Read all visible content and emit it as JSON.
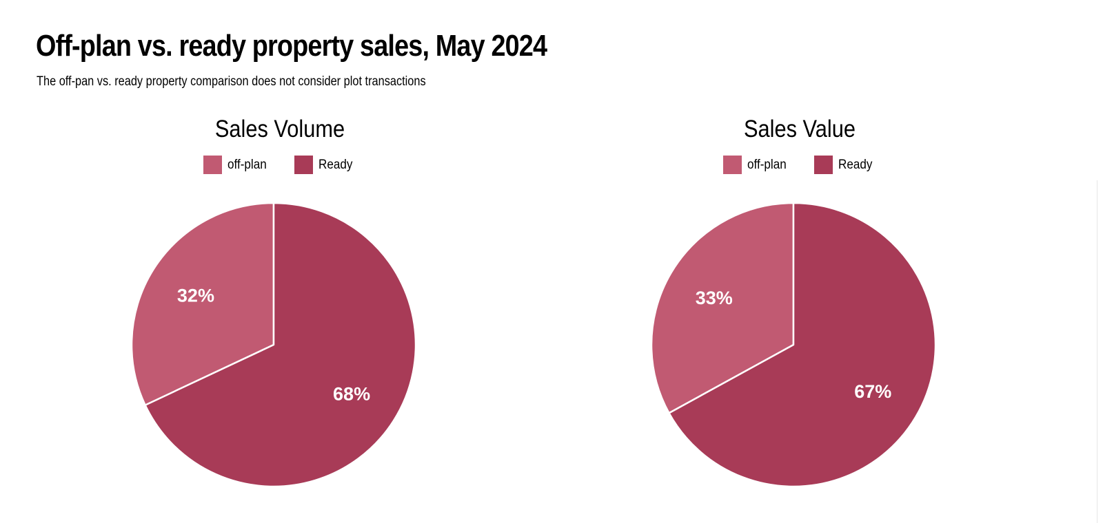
{
  "title": "Off-plan vs. ready property sales, May 2024",
  "subtitle": "The off-pan vs. ready property comparison does not consider plot transactions",
  "colors": {
    "off_plan": "#c15a72",
    "ready": "#a83b57"
  },
  "chart_data": [
    {
      "type": "pie",
      "title": "Sales Volume",
      "legend": [
        "off-plan",
        "Ready"
      ],
      "legend_position": "top",
      "categories": [
        "off-plan",
        "Ready"
      ],
      "values": [
        32,
        68
      ],
      "labels": [
        "32%",
        "68%"
      ]
    },
    {
      "type": "pie",
      "title": "Sales Value",
      "legend": [
        "off-plan",
        "Ready"
      ],
      "legend_position": "top",
      "categories": [
        "off-plan",
        "Ready"
      ],
      "values": [
        33,
        67
      ],
      "labels": [
        "33%",
        "67%"
      ]
    }
  ]
}
